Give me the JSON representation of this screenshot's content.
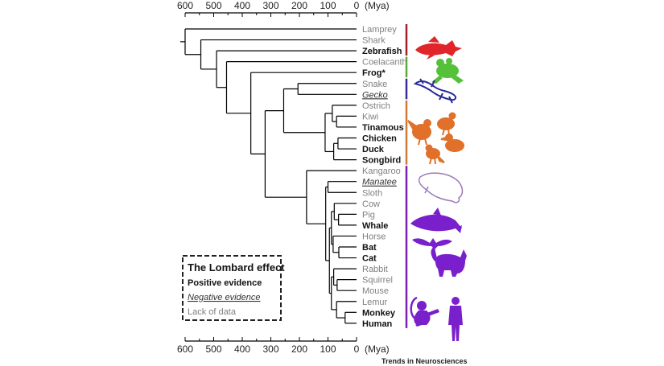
{
  "axis": {
    "unit": "(Mya)",
    "ticks": [
      600,
      500,
      400,
      300,
      200,
      100,
      0
    ]
  },
  "species": [
    {
      "name": "Lamprey",
      "status": "lack"
    },
    {
      "name": "Shark",
      "status": "lack"
    },
    {
      "name": "Zebrafish",
      "status": "positive"
    },
    {
      "name": "Coelacanth",
      "status": "lack"
    },
    {
      "name": "Frog*",
      "status": "positive"
    },
    {
      "name": "Snake",
      "status": "lack"
    },
    {
      "name": "Gecko",
      "status": "negative"
    },
    {
      "name": "Ostrich",
      "status": "lack"
    },
    {
      "name": "Kiwi",
      "status": "lack"
    },
    {
      "name": "Tinamous",
      "status": "positive"
    },
    {
      "name": "Chicken",
      "status": "positive"
    },
    {
      "name": "Duck",
      "status": "positive"
    },
    {
      "name": "Songbird",
      "status": "positive"
    },
    {
      "name": "Kangaroo",
      "status": "lack"
    },
    {
      "name": "Manatee",
      "status": "negative"
    },
    {
      "name": "Sloth",
      "status": "lack"
    },
    {
      "name": "Cow",
      "status": "lack"
    },
    {
      "name": "Pig",
      "status": "lack"
    },
    {
      "name": "Whale",
      "status": "positive"
    },
    {
      "name": "Horse",
      "status": "lack"
    },
    {
      "name": "Bat",
      "status": "positive"
    },
    {
      "name": "Cat",
      "status": "positive"
    },
    {
      "name": "Rabbit",
      "status": "lack"
    },
    {
      "name": "Squirrel",
      "status": "lack"
    },
    {
      "name": "Mouse",
      "status": "lack"
    },
    {
      "name": "Lemur",
      "status": "lack"
    },
    {
      "name": "Monkey",
      "status": "positive"
    },
    {
      "name": "Human",
      "status": "positive"
    }
  ],
  "nodes": [
    {
      "id": "lamprey_rest",
      "mya": 600,
      "children": [
        "Lamprey",
        "gnathostomes"
      ]
    },
    {
      "id": "gnathostomes",
      "mya": 545,
      "children": [
        "Shark",
        "osteichthyes"
      ]
    },
    {
      "id": "osteichthyes",
      "mya": 490,
      "children": [
        "Zebrafish",
        "sarcopterygii"
      ]
    },
    {
      "id": "sarcopterygii",
      "mya": 455,
      "children": [
        "Coelacanth",
        "tetrapods"
      ]
    },
    {
      "id": "tetrapods",
      "mya": 370,
      "children": [
        "Frog*",
        "amniotes"
      ]
    },
    {
      "id": "amniotes",
      "mya": 320,
      "children": [
        "sauropsids",
        "mammals"
      ]
    },
    {
      "id": "sauropsids",
      "mya": 255,
      "children": [
        "squamates",
        "birds"
      ]
    },
    {
      "id": "squamates",
      "mya": 205,
      "children": [
        "Snake",
        "Gecko"
      ]
    },
    {
      "id": "birds",
      "mya": 110,
      "children": [
        "palaeognaths",
        "neognaths"
      ]
    },
    {
      "id": "palaeognaths",
      "mya": 85,
      "children": [
        "Ostrich",
        "tinamou_kiwi"
      ]
    },
    {
      "id": "tinamou_kiwi",
      "mya": 70,
      "children": [
        "Kiwi",
        "Tinamous"
      ]
    },
    {
      "id": "neognaths",
      "mya": 80,
      "children": [
        "galloanserae",
        "Songbird"
      ]
    },
    {
      "id": "galloanserae",
      "mya": 65,
      "children": [
        "Chicken",
        "Duck"
      ]
    },
    {
      "id": "mammals",
      "mya": 175,
      "children": [
        "Kangaroo",
        "placentals"
      ]
    },
    {
      "id": "placentals",
      "mya": 108,
      "children": [
        "afrotheria",
        "boreo"
      ]
    },
    {
      "id": "afrotheria",
      "mya": 100,
      "children": [
        "Manatee",
        "Sloth"
      ]
    },
    {
      "id": "boreo",
      "mya": 95,
      "children": [
        "laurasiatheria",
        "euarchontoglires"
      ]
    },
    {
      "id": "laurasiatheria",
      "mya": 88,
      "children": [
        "cetartiodactyla",
        "horse_group"
      ]
    },
    {
      "id": "cetartiodactyla",
      "mya": 78,
      "children": [
        "Cow",
        "pig_whale"
      ]
    },
    {
      "id": "pig_whale",
      "mya": 63,
      "children": [
        "Pig",
        "Whale"
      ]
    },
    {
      "id": "horse_group",
      "mya": 82,
      "children": [
        "Horse",
        "bat_cat"
      ]
    },
    {
      "id": "bat_cat",
      "mya": 62,
      "children": [
        "Bat",
        "Cat"
      ]
    },
    {
      "id": "euarchontoglires",
      "mya": 88,
      "children": [
        "glires",
        "primates"
      ]
    },
    {
      "id": "glires",
      "mya": 80,
      "children": [
        "Rabbit",
        "rodents"
      ]
    },
    {
      "id": "rodents",
      "mya": 68,
      "children": [
        "Squirrel",
        "Mouse"
      ]
    },
    {
      "id": "primates",
      "mya": 70,
      "children": [
        "Lemur",
        "anthropoids"
      ]
    },
    {
      "id": "anthropoids",
      "mya": 40,
      "children": [
        "Monkey",
        "Human"
      ]
    }
  ],
  "groups": [
    {
      "name": "fish",
      "from": "Lamprey",
      "to": "Zebrafish",
      "color": "#a0202a"
    },
    {
      "name": "amphibians",
      "from": "Coelacanth",
      "to": "Frog*",
      "color": "#5aaa3a"
    },
    {
      "name": "reptiles",
      "from": "Snake",
      "to": "Gecko",
      "color": "#3a2a9a"
    },
    {
      "name": "birds",
      "from": "Ostrich",
      "to": "Songbird",
      "color": "#d07a3a"
    },
    {
      "name": "mammals",
      "from": "Kangaroo",
      "to": "Human",
      "color": "#7a1fb0"
    }
  ],
  "colors": {
    "fish": "#e0262a",
    "frog": "#55c03a",
    "gecko": "#2a2a9a",
    "birds": "#e0702a",
    "mammals": "#7a1fcc",
    "manatee_outline": "#9a7ab8"
  },
  "silhouettes": [
    {
      "icon": "zebrafish-silhouette",
      "color_key": "fish"
    },
    {
      "icon": "frog-silhouette",
      "color_key": "frog"
    },
    {
      "icon": "gecko-outline",
      "color_key": "gecko"
    },
    {
      "icon": "bird-silhouettes",
      "color_key": "birds"
    },
    {
      "icon": "manatee-outline",
      "color_key": "manatee_outline"
    },
    {
      "icon": "whale-silhouette",
      "color_key": "mammals"
    },
    {
      "icon": "bat-silhouette",
      "color_key": "mammals"
    },
    {
      "icon": "cat-silhouette",
      "color_key": "mammals"
    },
    {
      "icon": "monkey-silhouette",
      "color_key": "mammals"
    },
    {
      "icon": "human-silhouette",
      "color_key": "mammals"
    }
  ],
  "legend": {
    "title": "The Lombard effect",
    "positive": "Positive evidence",
    "negative": "Negative evidence",
    "lack": "Lack of data"
  },
  "credit": "Trends in Neurosciences"
}
